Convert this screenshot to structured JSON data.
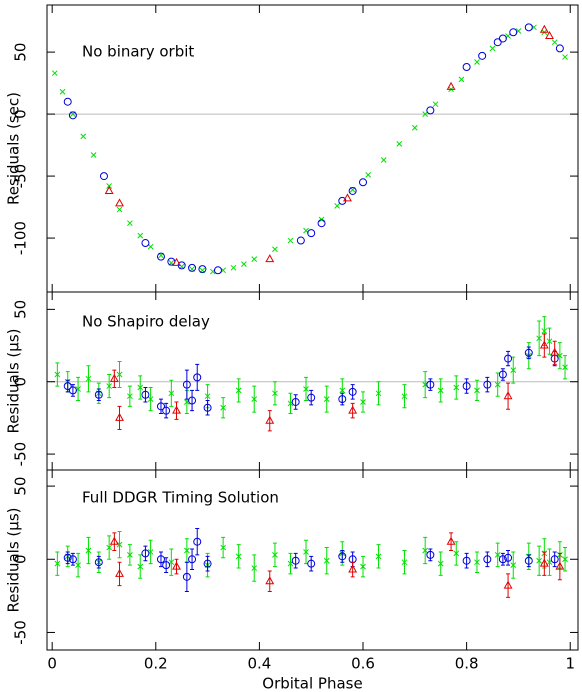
{
  "chart_data": [
    {
      "type": "scatter",
      "annotation": "No binary orbit",
      "ylabel": "Residuals (sec)",
      "xlim": [
        -0.01,
        1.015
      ],
      "ylim": [
        -143.5,
        88
      ],
      "xticks": [
        0,
        0.2,
        0.4,
        0.6,
        0.8,
        1
      ],
      "yticks": [
        -100,
        -50,
        0,
        50
      ],
      "zero_line": true,
      "series": [
        {
          "marker": "x",
          "color": "#00e000",
          "x": [
            0.005,
            0.02,
            0.04,
            0.06,
            0.08,
            0.11,
            0.13,
            0.15,
            0.17,
            0.19,
            0.21,
            0.23,
            0.25,
            0.27,
            0.29,
            0.31,
            0.33,
            0.35,
            0.37,
            0.39,
            0.43,
            0.46,
            0.49,
            0.52,
            0.55,
            0.58,
            0.61,
            0.64,
            0.67,
            0.7,
            0.72,
            0.74,
            0.77,
            0.79,
            0.82,
            0.85,
            0.88,
            0.9,
            0.93,
            0.95,
            0.97,
            0.99
          ],
          "values": [
            33,
            18,
            0,
            -18,
            -33,
            -58,
            -77,
            -88,
            -98,
            -107,
            -114,
            -120,
            -123,
            -125,
            -126,
            -127,
            -126,
            -124,
            -121,
            -117,
            -109,
            -102,
            -94,
            -85,
            -74,
            -61,
            -49,
            -37,
            -24,
            -11,
            0,
            8,
            20,
            28,
            42,
            53,
            63,
            67,
            70,
            66,
            58,
            46
          ]
        },
        {
          "marker": "circle",
          "color": "#0000e0",
          "x": [
            0.03,
            0.04,
            0.1,
            0.18,
            0.21,
            0.23,
            0.25,
            0.27,
            0.29,
            0.32,
            0.48,
            0.5,
            0.52,
            0.56,
            0.58,
            0.6,
            0.73,
            0.8,
            0.83,
            0.86,
            0.87,
            0.89,
            0.92,
            0.98
          ],
          "values": [
            10,
            -1,
            -50,
            -104,
            -115,
            -119,
            -122,
            -124,
            -125,
            -126,
            -102,
            -96,
            -88,
            -70,
            -62,
            -55,
            3,
            38,
            47,
            58,
            61,
            66,
            70,
            53
          ]
        },
        {
          "marker": "triangle",
          "color": "#e00000",
          "x": [
            0.11,
            0.13,
            0.24,
            0.42,
            0.57,
            0.77,
            0.95,
            0.96
          ],
          "values": [
            -62,
            -72,
            -120,
            -117,
            -68,
            22,
            68,
            63
          ]
        }
      ]
    },
    {
      "type": "scatter",
      "annotation": "No Shapiro delay",
      "ylabel": "Residuals (μs)",
      "xlim": [
        -0.01,
        1.015
      ],
      "ylim": [
        -61,
        62
      ],
      "xticks": [
        0,
        0.2,
        0.4,
        0.6,
        0.8,
        1
      ],
      "yticks": [
        -50,
        0,
        50
      ],
      "zero_line": true,
      "series": [
        {
          "marker": "x",
          "color": "#00e000",
          "x": [
            0.01,
            0.03,
            0.05,
            0.07,
            0.09,
            0.11,
            0.13,
            0.15,
            0.17,
            0.19,
            0.23,
            0.26,
            0.3,
            0.33,
            0.36,
            0.39,
            0.43,
            0.46,
            0.49,
            0.53,
            0.56,
            0.6,
            0.63,
            0.68,
            0.72,
            0.75,
            0.78,
            0.82,
            0.86,
            0.89,
            0.92,
            0.94,
            0.95,
            0.96,
            0.98,
            0.99
          ],
          "values": [
            5,
            0,
            -5,
            2,
            -8,
            -3,
            5,
            -10,
            -4,
            -12,
            -8,
            -14,
            -10,
            -18,
            -6,
            -12,
            -8,
            -15,
            -5,
            -12,
            -6,
            -14,
            -8,
            -10,
            -2,
            -6,
            -4,
            -6,
            -2,
            8,
            18,
            30,
            35,
            28,
            18,
            10
          ],
          "errors": [
            8,
            7,
            8,
            9,
            7,
            8,
            9,
            7,
            8,
            8,
            9,
            8,
            8,
            7,
            8,
            9,
            8,
            7,
            8,
            9,
            8,
            7,
            8,
            8,
            9,
            8,
            8,
            7,
            8,
            9,
            9,
            12,
            10,
            9,
            9,
            8
          ]
        },
        {
          "marker": "circle",
          "color": "#0000e0",
          "x": [
            0.03,
            0.04,
            0.09,
            0.18,
            0.21,
            0.22,
            0.26,
            0.27,
            0.28,
            0.3,
            0.47,
            0.5,
            0.56,
            0.58,
            0.73,
            0.8,
            0.84,
            0.87,
            0.88,
            0.92,
            0.97
          ],
          "values": [
            -3,
            -6,
            -9,
            -9,
            -17,
            -20,
            -2,
            -13,
            3,
            -18,
            -14,
            -11,
            -12,
            -7,
            -2,
            -3,
            -2,
            5,
            16,
            20,
            16
          ],
          "errors": [
            4,
            4,
            4,
            5,
            5,
            5,
            10,
            7,
            9,
            5,
            5,
            5,
            4,
            5,
            4,
            5,
            5,
            4,
            5,
            4,
            5
          ]
        },
        {
          "marker": "triangle",
          "color": "#e00000",
          "x": [
            0.12,
            0.13,
            0.24,
            0.42,
            0.58,
            0.88,
            0.95,
            0.97
          ],
          "values": [
            2,
            -25,
            -20,
            -27,
            -20,
            -10,
            25,
            20
          ],
          "errors": [
            6,
            8,
            6,
            7,
            5,
            9,
            8,
            8
          ]
        }
      ]
    },
    {
      "type": "scatter",
      "annotation": "Full DDGR Timing Solution",
      "ylabel": "Residuals (μs)",
      "xlabel": "Orbital Phase",
      "xlim": [
        -0.01,
        1.015
      ],
      "ylim": [
        -62,
        61
      ],
      "xticks": [
        0,
        0.2,
        0.4,
        0.6,
        0.8,
        1
      ],
      "yticks": [
        -50,
        0,
        50
      ],
      "zero_line": false,
      "series": [
        {
          "marker": "x",
          "color": "#00e000",
          "x": [
            0.01,
            0.03,
            0.05,
            0.07,
            0.09,
            0.11,
            0.13,
            0.15,
            0.17,
            0.19,
            0.23,
            0.26,
            0.3,
            0.33,
            0.36,
            0.39,
            0.43,
            0.46,
            0.49,
            0.53,
            0.56,
            0.6,
            0.63,
            0.68,
            0.72,
            0.75,
            0.78,
            0.82,
            0.86,
            0.89,
            0.92,
            0.94,
            0.95,
            0.96,
            0.98,
            0.99
          ],
          "values": [
            -3,
            2,
            -4,
            6,
            -2,
            8,
            10,
            3,
            -5,
            5,
            -2,
            6,
            -4,
            8,
            2,
            -6,
            3,
            -3,
            5,
            -1,
            4,
            -5,
            2,
            -2,
            6,
            -3,
            4,
            -2,
            3,
            -4,
            2,
            -1,
            4,
            -2,
            3,
            0
          ],
          "errors": [
            8,
            7,
            8,
            9,
            7,
            8,
            9,
            7,
            8,
            8,
            9,
            8,
            8,
            7,
            8,
            9,
            8,
            7,
            8,
            9,
            8,
            7,
            8,
            8,
            9,
            8,
            8,
            7,
            8,
            9,
            9,
            10,
            10,
            9,
            9,
            8
          ]
        },
        {
          "marker": "circle",
          "color": "#0000e0",
          "x": [
            0.03,
            0.04,
            0.09,
            0.18,
            0.21,
            0.22,
            0.26,
            0.27,
            0.28,
            0.3,
            0.47,
            0.5,
            0.56,
            0.58,
            0.73,
            0.8,
            0.84,
            0.87,
            0.88,
            0.92,
            0.97
          ],
          "values": [
            1,
            0,
            -2,
            4,
            0,
            -4,
            -12,
            0,
            12,
            -3,
            -1,
            -3,
            2,
            0,
            3,
            -1,
            0,
            0,
            1,
            -1,
            0
          ],
          "errors": [
            4,
            4,
            4,
            5,
            5,
            5,
            10,
            7,
            9,
            5,
            5,
            5,
            4,
            5,
            4,
            5,
            5,
            4,
            5,
            4,
            5
          ]
        },
        {
          "marker": "triangle",
          "color": "#e00000",
          "x": [
            0.12,
            0.13,
            0.24,
            0.42,
            0.58,
            0.77,
            0.88,
            0.95,
            0.98
          ],
          "values": [
            12,
            -10,
            -5,
            -15,
            -7,
            12,
            -18,
            -3,
            -5
          ],
          "errors": [
            6,
            8,
            5,
            7,
            5,
            6,
            8,
            8,
            9
          ]
        }
      ]
    }
  ]
}
